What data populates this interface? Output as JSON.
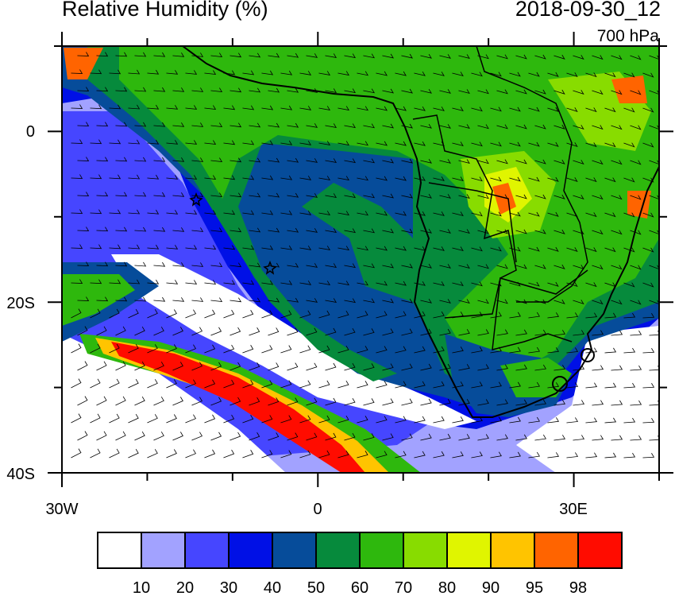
{
  "header": {
    "title": "Relative Humidity (%)",
    "datetime": "2018-09-30_12",
    "level": "700 hPa"
  },
  "map": {
    "region": "South Atlantic / Southern Africa",
    "lon_range": [
      -30,
      40
    ],
    "lat_range": [
      -40,
      10
    ],
    "lon_labels": [
      "30W",
      "0",
      "30E"
    ],
    "lat_labels": [
      "0",
      "20S",
      "40S"
    ],
    "overlay": "wind barbs",
    "markers": [
      "star-icon",
      "star-icon"
    ]
  },
  "colorbar": {
    "labels": [
      "10",
      "20",
      "30",
      "40",
      "50",
      "60",
      "70",
      "80",
      "90",
      "95",
      "98"
    ],
    "colors": [
      "#ffffff",
      "#a2a2ff",
      "#4646ff",
      "#0010e6",
      "#064c9a",
      "#068a3c",
      "#2eb80d",
      "#88dc00",
      "#e0f500",
      "#ffc400",
      "#ff6400",
      "#ff0c00"
    ]
  },
  "chart_data": {
    "type": "heatmap",
    "title": "Relative Humidity (%)",
    "levels": [
      10,
      20,
      30,
      40,
      50,
      60,
      70,
      80,
      90,
      95,
      98
    ],
    "xlim": [
      -30,
      40
    ],
    "ylim": [
      -40,
      10
    ],
    "xticks": [
      "30W",
      "0",
      "30E"
    ],
    "yticks": [
      "0",
      "20S",
      "40S"
    ],
    "legend": "bottom"
  }
}
